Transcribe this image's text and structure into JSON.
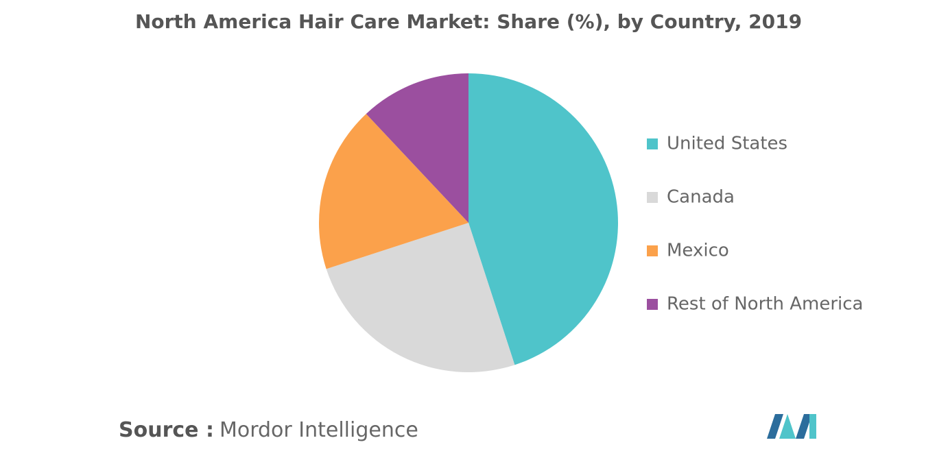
{
  "chart_data": {
    "type": "pie",
    "title": "North America Hair Care Market: Share (%), by Country, 2019",
    "categories": [
      "United States",
      "Canada",
      "Mexico",
      "Rest of North America"
    ],
    "values": [
      45,
      25,
      18,
      12
    ],
    "colors": [
      "#4fc4ca",
      "#d9d9d9",
      "#fba14b",
      "#9b4f9f"
    ],
    "legend": "right"
  },
  "source_label": "Source :",
  "source": "Mordor Intelligence"
}
